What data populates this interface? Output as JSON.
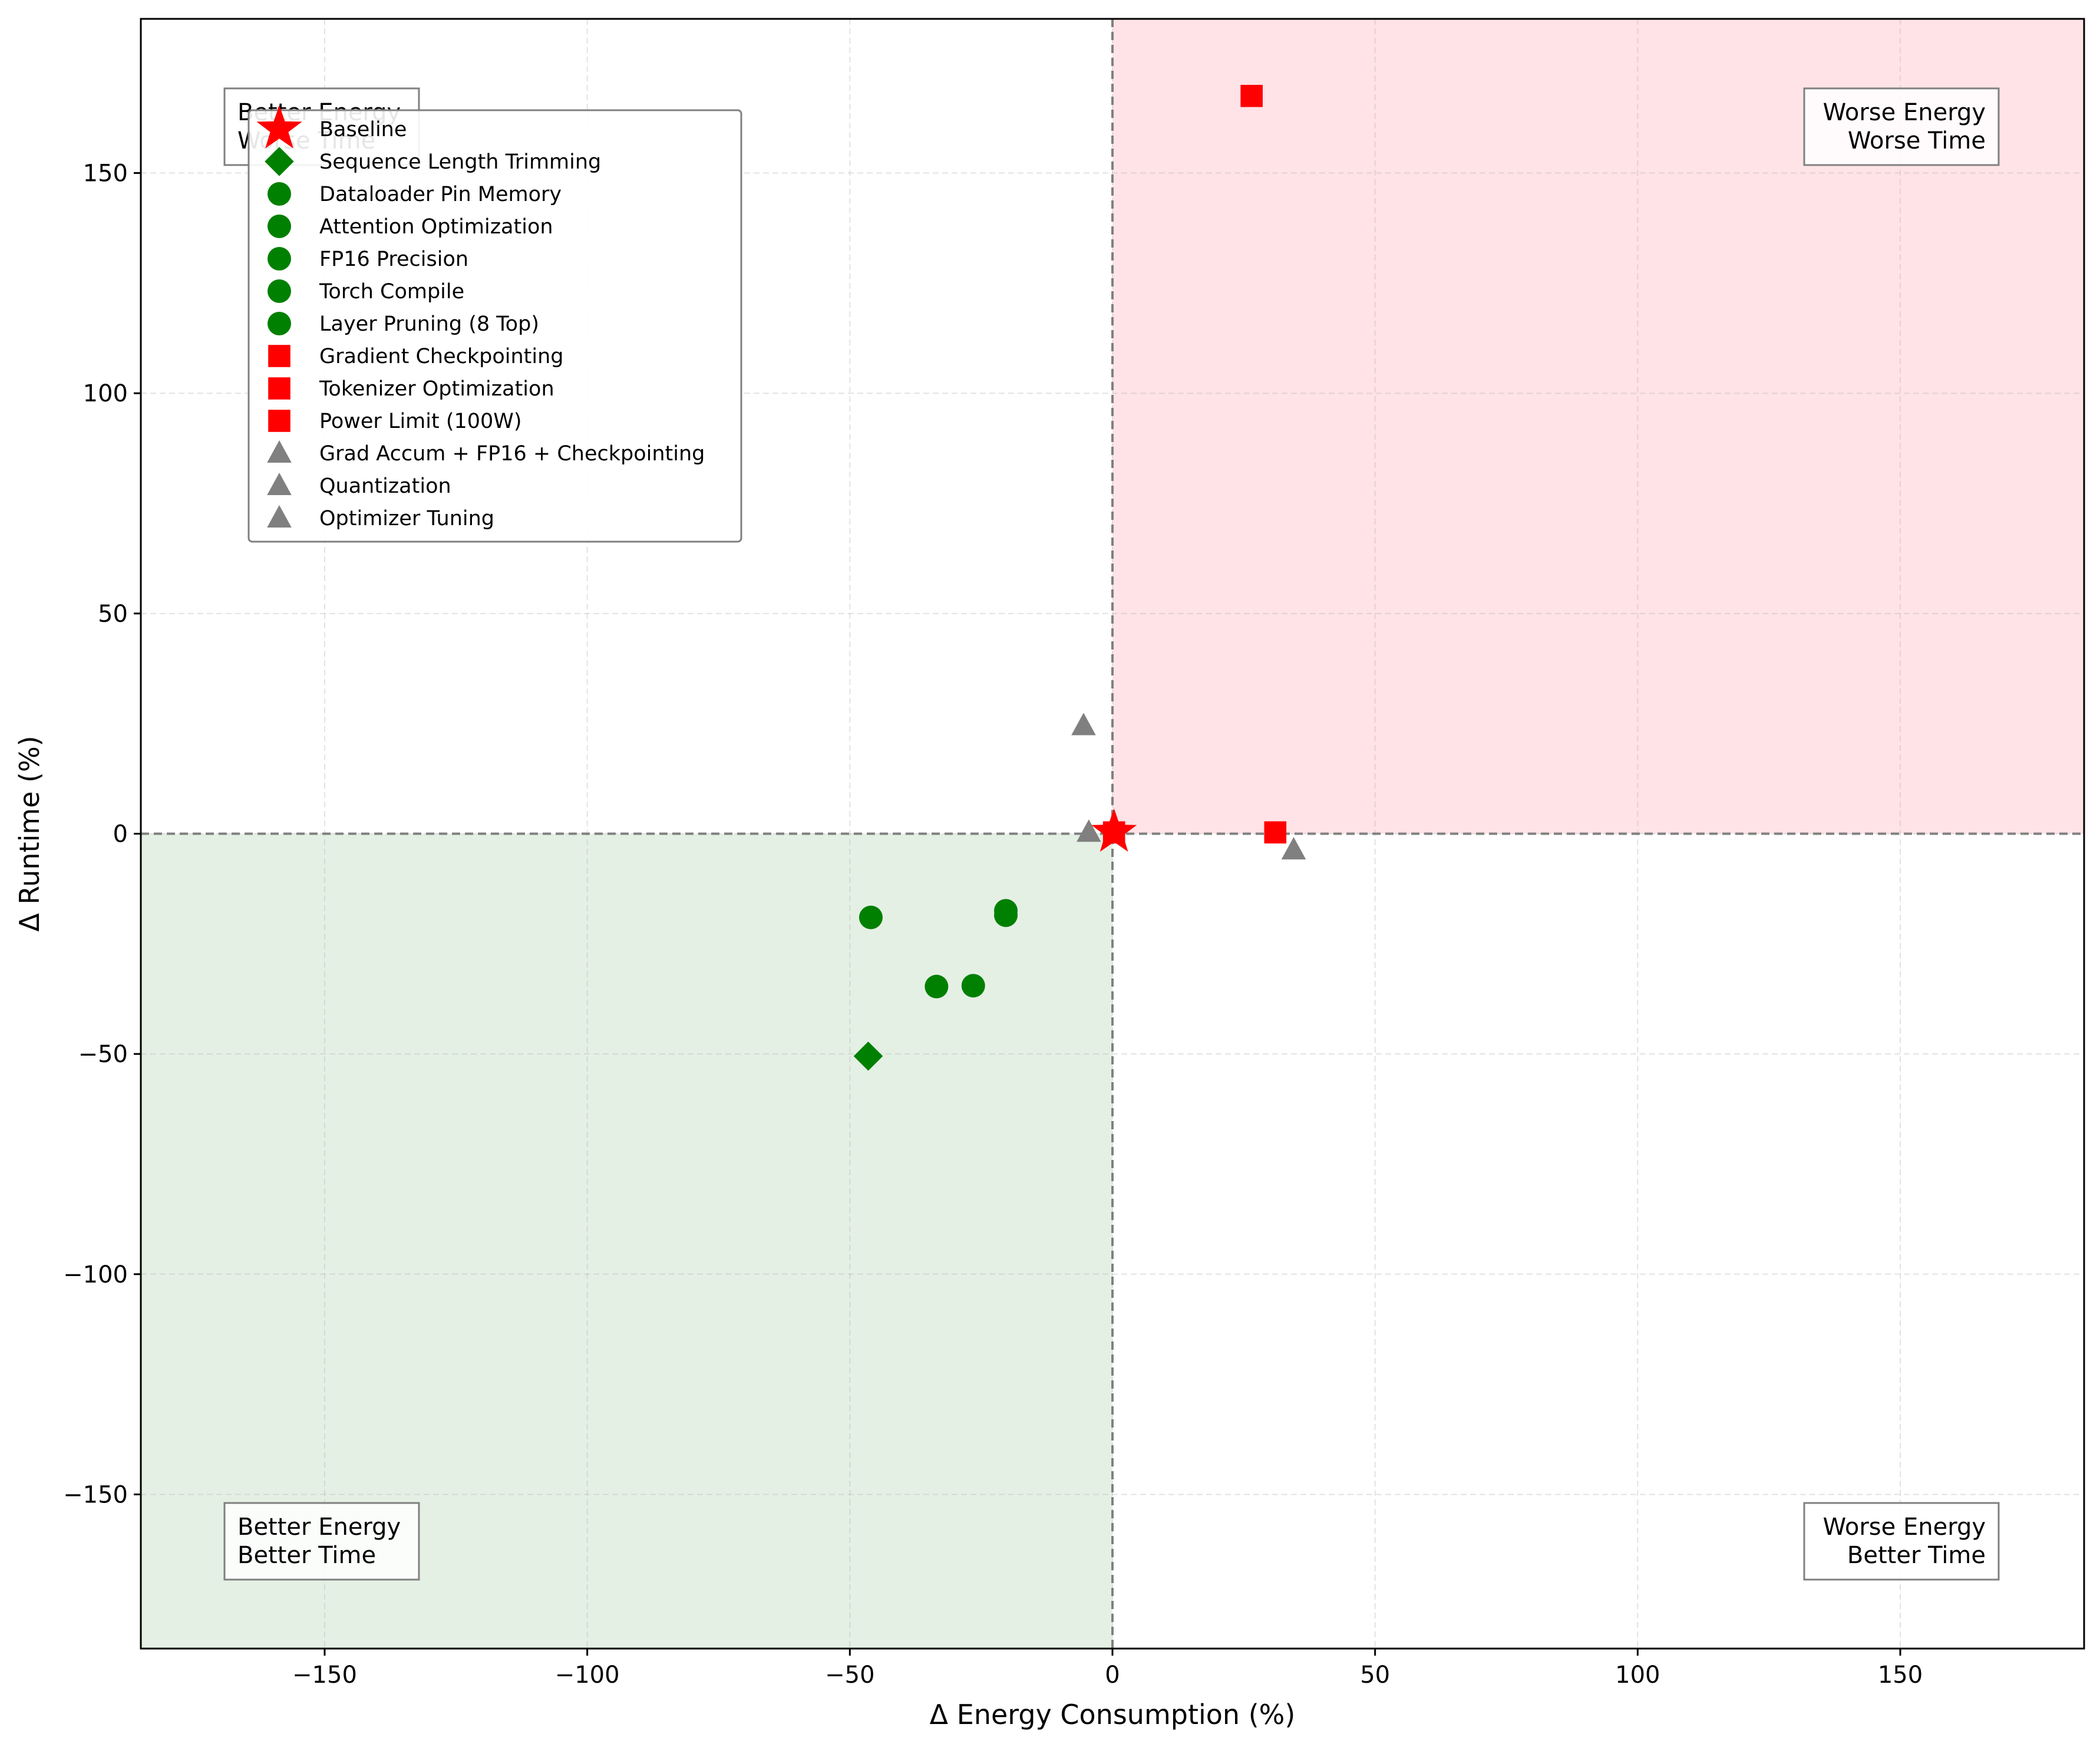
{
  "chart_data": {
    "type": "scatter",
    "xlabel": "Δ Energy Consumption (%)",
    "ylabel": "Δ Runtime (%)",
    "xlim": [
      -185,
      185
    ],
    "ylim": [
      -185,
      185
    ],
    "xticks": [
      -150,
      -100,
      -50,
      0,
      50,
      100,
      150
    ],
    "yticks": [
      -150,
      -100,
      -50,
      0,
      50,
      100,
      150
    ],
    "xtick_labels": [
      "−150",
      "−100",
      "−50",
      "0",
      "50",
      "100",
      "150"
    ],
    "ytick_labels": [
      "−150",
      "−100",
      "−50",
      "0",
      "50",
      "100",
      "150"
    ],
    "grid": true,
    "legend_position": "upper-left",
    "quadrant_shading": [
      {
        "quadrant": "better-energy-better-time",
        "color": "#e5f0e5"
      },
      {
        "quadrant": "worse-energy-worse-time",
        "color": "#ffe3e6"
      }
    ],
    "quadrant_labels": [
      {
        "id": "top-left",
        "lines": [
          "Better Energy",
          "Worse Time"
        ]
      },
      {
        "id": "top-right",
        "lines": [
          "Worse Energy",
          "Worse Time"
        ]
      },
      {
        "id": "bottom-left",
        "lines": [
          "Better Energy",
          "Better Time"
        ]
      },
      {
        "id": "bottom-right",
        "lines": [
          "Worse Energy",
          "Better Time"
        ]
      }
    ],
    "series": [
      {
        "name": "Baseline",
        "marker": "star",
        "color": "#ff0000",
        "x": 0.3,
        "y": 0.3
      },
      {
        "name": "Sequence Length Trimming",
        "marker": "diamond",
        "color": "#008000",
        "x": -46.5,
        "y": -50.5
      },
      {
        "name": "Dataloader Pin Memory",
        "marker": "circle",
        "color": "#008000",
        "x": -46,
        "y": -19
      },
      {
        "name": "Attention Optimization",
        "marker": "circle",
        "color": "#008000",
        "x": -33.5,
        "y": -34.7
      },
      {
        "name": "FP16 Precision",
        "marker": "circle",
        "color": "#008000",
        "x": -26.5,
        "y": -34.5
      },
      {
        "name": "Torch Compile",
        "marker": "circle",
        "color": "#008000",
        "x": -20.3,
        "y": -17.5
      },
      {
        "name": "Layer Pruning (8 Top)",
        "marker": "circle",
        "color": "#008000",
        "x": -20.3,
        "y": -18.5
      },
      {
        "name": "Gradient Checkpointing",
        "marker": "square",
        "color": "#ff0000",
        "x": 26.5,
        "y": 167.5
      },
      {
        "name": "Tokenizer Optimization",
        "marker": "square",
        "color": "#ff0000",
        "x": 31,
        "y": 0.3
      },
      {
        "name": "Power Limit (100W)",
        "marker": "square",
        "color": "#ff0000",
        "x": 0.3,
        "y": 0.3
      },
      {
        "name": "Grad Accum + FP16 + Checkpointing",
        "marker": "triangle",
        "color": "#808080",
        "x": -5.5,
        "y": 24.5
      },
      {
        "name": "Quantization",
        "marker": "triangle",
        "color": "#808080",
        "x": -4.5,
        "y": 0.3
      },
      {
        "name": "Optimizer Tuning",
        "marker": "triangle",
        "color": "#808080",
        "x": 34.5,
        "y": -3.7
      }
    ]
  }
}
